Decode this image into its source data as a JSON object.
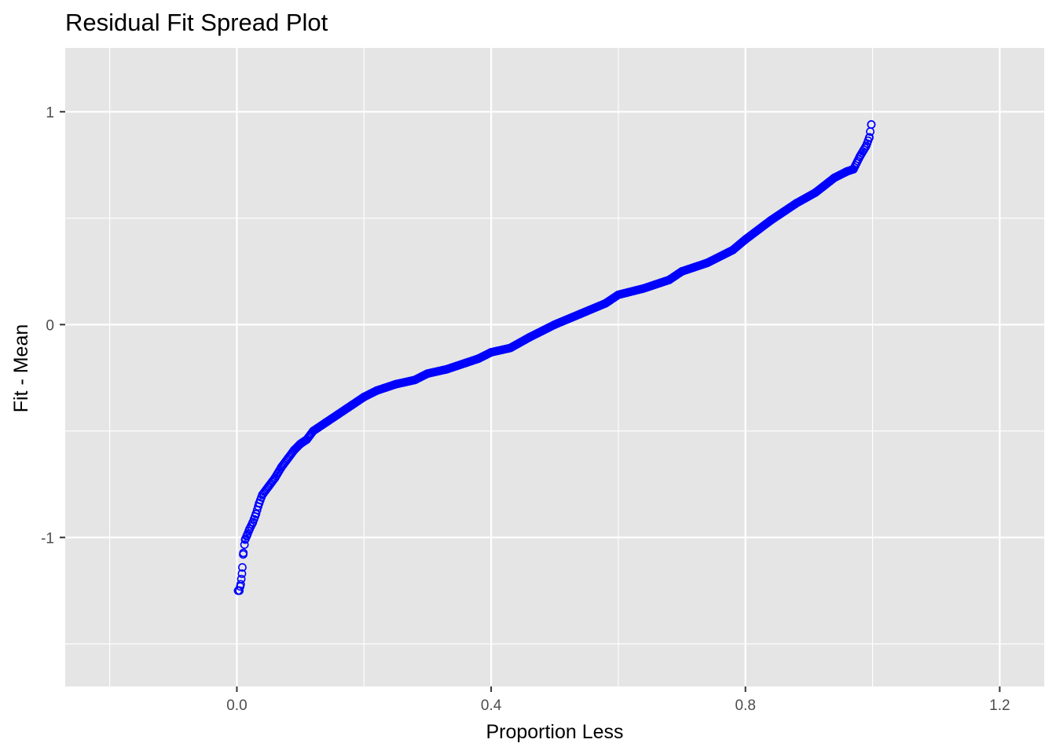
{
  "chart_data": {
    "type": "scatter",
    "title": "Residual Fit Spread Plot",
    "xlabel": "Proportion Less",
    "ylabel": "Fit - Mean",
    "xlim": [
      -0.27,
      1.27
    ],
    "ylim": [
      -1.7,
      1.3
    ],
    "x_ticks": [
      0.0,
      0.4,
      0.8,
      1.2
    ],
    "x_tick_labels": [
      "0.0",
      "0.4",
      "0.8",
      "1.2"
    ],
    "x_minor_ticks": [
      -0.2,
      0.2,
      0.6,
      1.0
    ],
    "y_ticks": [
      -1,
      0,
      1
    ],
    "y_tick_labels": [
      "-1",
      "0",
      "1"
    ],
    "y_minor_ticks": [
      -1.5,
      -0.5,
      0.5
    ],
    "grid": true,
    "legend": "none",
    "marker": "open-circle",
    "point_color": "#0000ff",
    "panel_color": "#e5e5e5",
    "curve_points": {
      "p": [
        0.002,
        0.004,
        0.006,
        0.008,
        0.01,
        0.013,
        0.016,
        0.02,
        0.025,
        0.03,
        0.035,
        0.04,
        0.05,
        0.06,
        0.07,
        0.08,
        0.09,
        0.1,
        0.11,
        0.12,
        0.14,
        0.16,
        0.18,
        0.2,
        0.22,
        0.25,
        0.28,
        0.3,
        0.33,
        0.36,
        0.38,
        0.4,
        0.43,
        0.46,
        0.5,
        0.54,
        0.58,
        0.6,
        0.64,
        0.68,
        0.7,
        0.74,
        0.78,
        0.8,
        0.84,
        0.88,
        0.91,
        0.94,
        0.96,
        0.97,
        0.98,
        0.99,
        0.995,
        0.998
      ],
      "y": [
        -1.25,
        -1.25,
        -1.22,
        -1.17,
        -1.08,
        -1.01,
        -0.99,
        -0.96,
        -0.93,
        -0.89,
        -0.84,
        -0.8,
        -0.76,
        -0.72,
        -0.67,
        -0.63,
        -0.59,
        -0.56,
        -0.54,
        -0.5,
        -0.46,
        -0.42,
        -0.38,
        -0.34,
        -0.31,
        -0.28,
        -0.26,
        -0.23,
        -0.21,
        -0.18,
        -0.16,
        -0.13,
        -0.11,
        -0.06,
        0.0,
        0.05,
        0.1,
        0.14,
        0.17,
        0.21,
        0.25,
        0.29,
        0.35,
        0.4,
        0.49,
        0.57,
        0.62,
        0.69,
        0.72,
        0.73,
        0.79,
        0.84,
        0.88,
        0.94
      ]
    },
    "n_points": 600
  }
}
